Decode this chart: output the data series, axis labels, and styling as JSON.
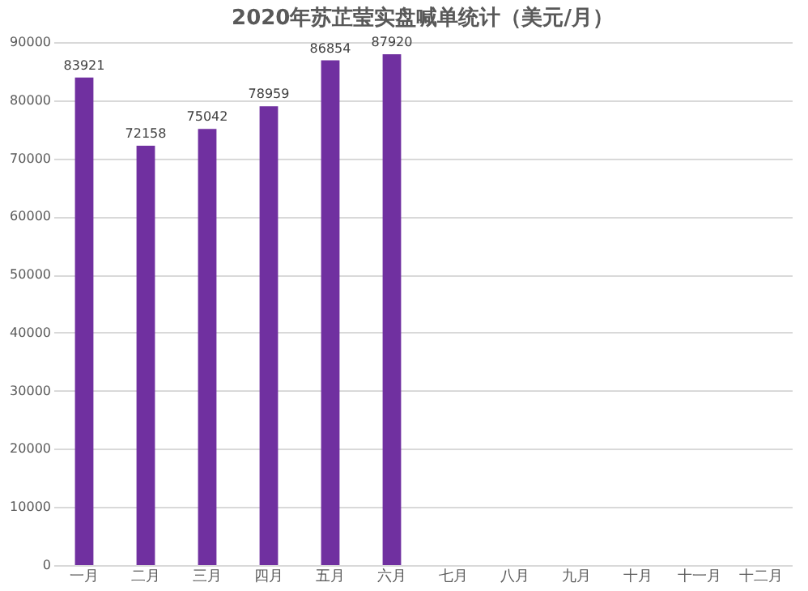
{
  "chart_data": {
    "type": "bar",
    "title": "2020年苏芷莹实盘喊单统计（美元/月）",
    "categories": [
      "一月",
      "二月",
      "三月",
      "四月",
      "五月",
      "六月",
      "七月",
      "八月",
      "九月",
      "十月",
      "十一月",
      "十二月"
    ],
    "values": [
      83921,
      72158,
      75042,
      78959,
      86854,
      87920,
      null,
      null,
      null,
      null,
      null,
      null
    ],
    "color": "#7030a0",
    "ylim": [
      0,
      90000
    ],
    "yticks": [
      0,
      10000,
      20000,
      30000,
      40000,
      50000,
      60000,
      70000,
      80000,
      90000
    ],
    "grid": "y",
    "data_labels": true
  }
}
